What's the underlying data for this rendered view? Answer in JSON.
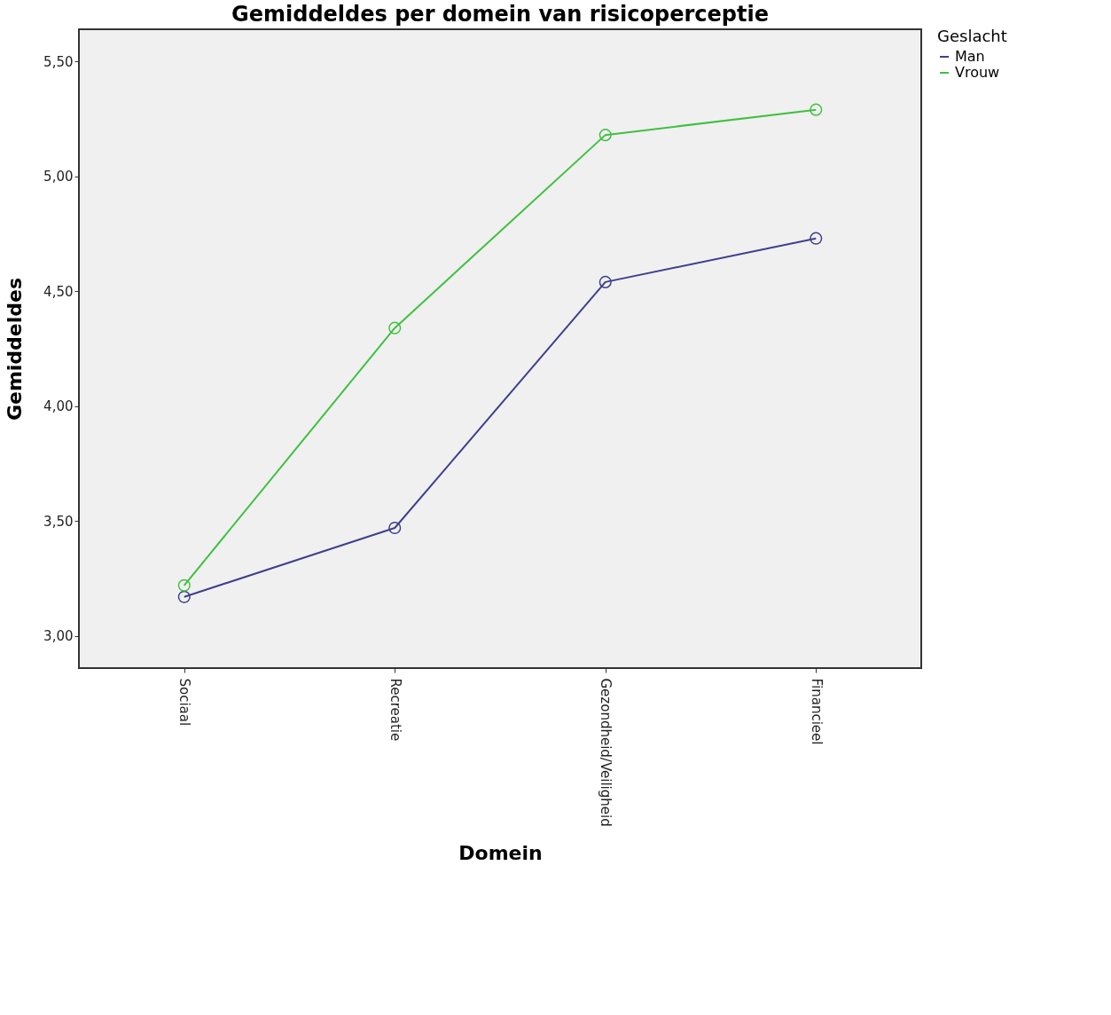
{
  "chart_data": {
    "type": "line",
    "title": "Gemiddeldes per domein van risicoperceptie",
    "xlabel": "Domein",
    "ylabel": "Gemiddeldes",
    "legend_title": "Geslacht",
    "categories": [
      "Sociaal",
      "Recreatie",
      "Gezondheid/Veiligheid",
      "Financieel"
    ],
    "series": [
      {
        "name": "Man",
        "color": "#3f3f8f",
        "values": [
          3.17,
          3.47,
          4.54,
          4.73
        ]
      },
      {
        "name": "Vrouw",
        "color": "#40c040",
        "values": [
          3.22,
          4.34,
          5.18,
          5.29
        ]
      }
    ],
    "ylim": [
      2.86,
      5.64
    ],
    "yticks": [
      {
        "value": 3.0,
        "label": "3,00"
      },
      {
        "value": 3.5,
        "label": "3,50"
      },
      {
        "value": 4.0,
        "label": "4,00"
      },
      {
        "value": 4.5,
        "label": "4,50"
      },
      {
        "value": 5.0,
        "label": "5,00"
      },
      {
        "value": 5.5,
        "label": "5,50"
      }
    ],
    "grid": false,
    "legend": "top right",
    "marker": "circle",
    "line_style": "solid"
  }
}
